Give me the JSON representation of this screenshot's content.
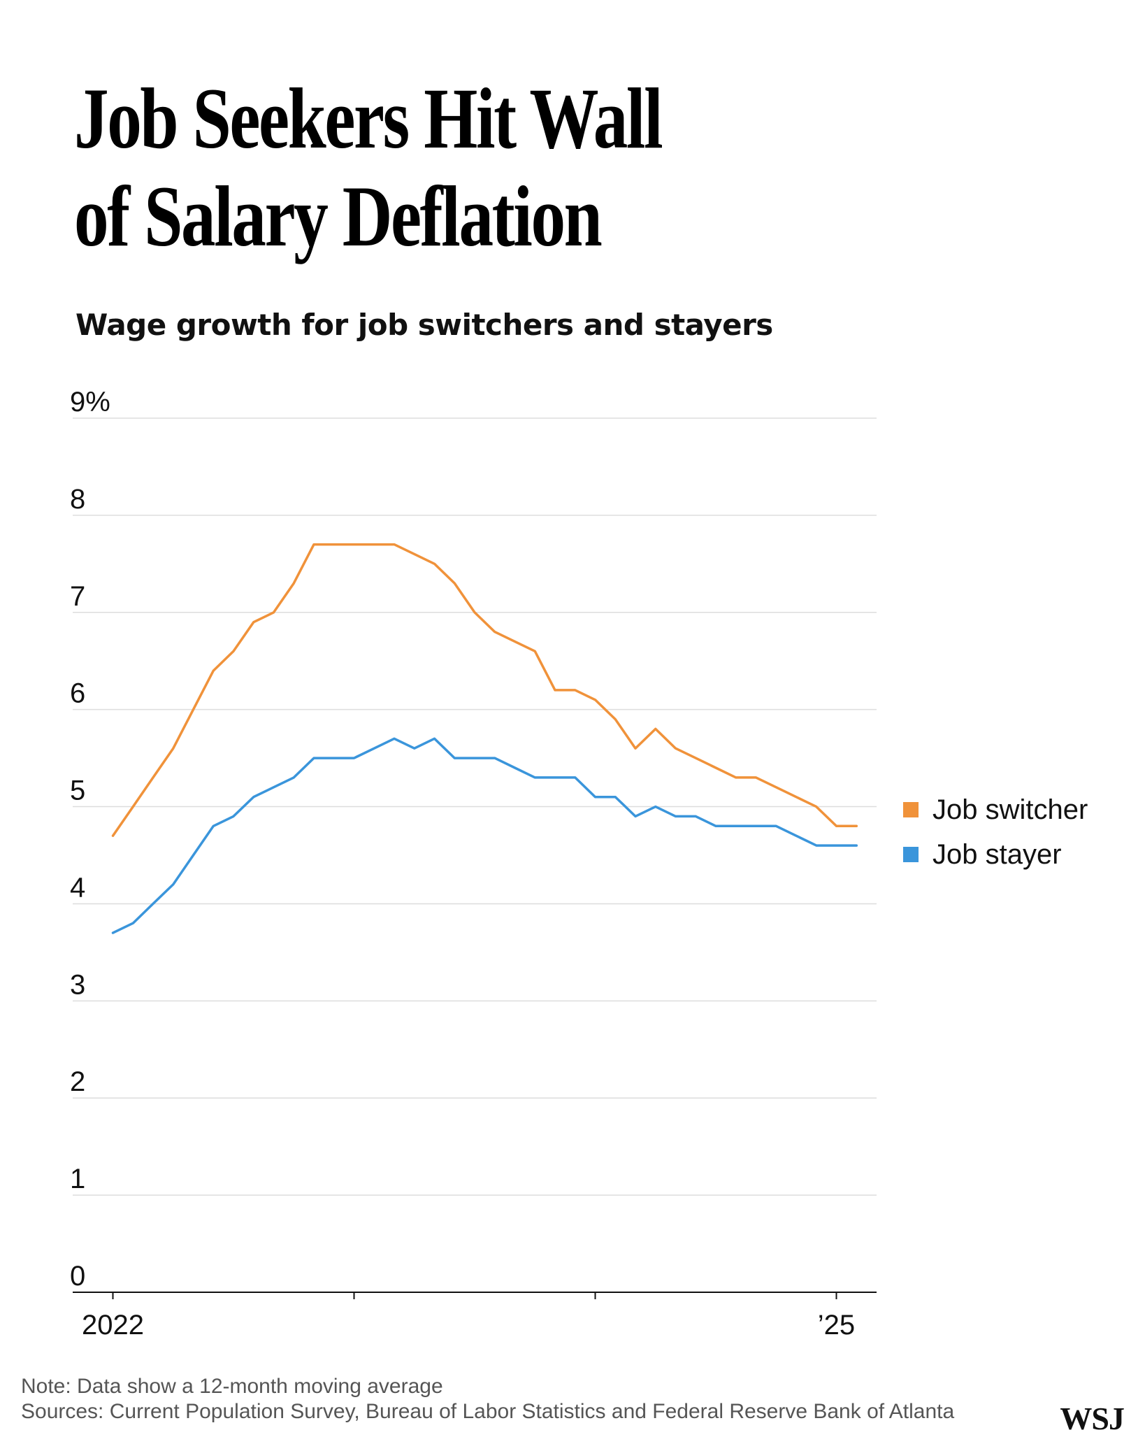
{
  "header": {
    "title_line1": "Job Seekers Hit Wall",
    "title_line2": "of Salary Deflation",
    "subtitle": "Wage growth for job switchers and stayers"
  },
  "legend": {
    "switcher_label": "Job switcher",
    "stayer_label": "Job stayer"
  },
  "footer": {
    "note": "Note: Data show a 12-month moving average",
    "sources": "Sources: Current Population Survey, Bureau of Labor Statistics and Federal Reserve Bank of Atlanta",
    "logo": "WSJ"
  },
  "colors": {
    "switcher": "#f0923a",
    "stayer": "#3a95db",
    "grid": "#dddddd",
    "axis": "#111111"
  },
  "chart_data": {
    "type": "line",
    "title": "Wage growth for job switchers and stayers",
    "xlabel": "",
    "ylabel": "",
    "x_ticks": [
      "2022",
      "’25"
    ],
    "x_range": [
      "2021-11",
      "2025-03"
    ],
    "y_ticks": [
      "0",
      "1",
      "2",
      "3",
      "4",
      "5",
      "6",
      "7",
      "8",
      "9%"
    ],
    "ylim": [
      0,
      9
    ],
    "grid": true,
    "legend_position": "right",
    "x": [
      "2022-01",
      "2022-02",
      "2022-03",
      "2022-04",
      "2022-05",
      "2022-06",
      "2022-07",
      "2022-08",
      "2022-09",
      "2022-10",
      "2022-11",
      "2022-12",
      "2023-01",
      "2023-02",
      "2023-03",
      "2023-04",
      "2023-05",
      "2023-06",
      "2023-07",
      "2023-08",
      "2023-09",
      "2023-10",
      "2023-11",
      "2023-12",
      "2024-01",
      "2024-02",
      "2024-03",
      "2024-04",
      "2024-05",
      "2024-06",
      "2024-07",
      "2024-08",
      "2024-09",
      "2024-10",
      "2024-11",
      "2024-12",
      "2025-01",
      "2025-02"
    ],
    "series": [
      {
        "name": "Job switcher",
        "values": [
          4.7,
          5.0,
          5.3,
          5.6,
          6.0,
          6.4,
          6.6,
          6.9,
          7.0,
          7.3,
          7.7,
          7.7,
          7.7,
          7.7,
          7.7,
          7.6,
          7.5,
          7.3,
          7.0,
          6.8,
          6.7,
          6.6,
          6.2,
          6.2,
          6.1,
          5.9,
          5.6,
          5.8,
          5.6,
          5.5,
          5.4,
          5.3,
          5.3,
          5.2,
          5.1,
          5.0,
          4.8,
          4.8
        ]
      },
      {
        "name": "Job stayer",
        "values": [
          3.7,
          3.8,
          4.0,
          4.2,
          4.5,
          4.8,
          4.9,
          5.1,
          5.2,
          5.3,
          5.5,
          5.5,
          5.5,
          5.6,
          5.7,
          5.6,
          5.7,
          5.5,
          5.5,
          5.5,
          5.4,
          5.3,
          5.3,
          5.3,
          5.1,
          5.1,
          4.9,
          5.0,
          4.9,
          4.9,
          4.8,
          4.8,
          4.8,
          4.8,
          4.7,
          4.6,
          4.6,
          4.6
        ]
      }
    ]
  }
}
